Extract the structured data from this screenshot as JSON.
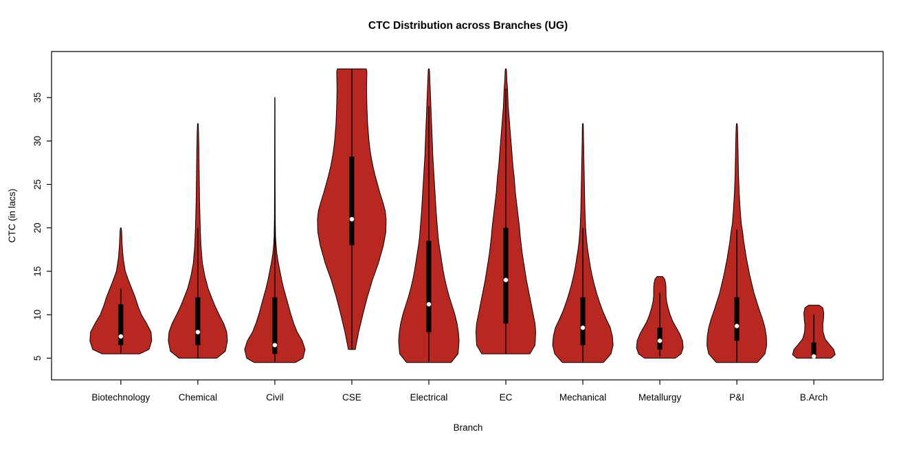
{
  "title": "CTC Distribution across Branches (UG)",
  "chart_data": {
    "type": "violin",
    "title": "CTC Distribution across Branches (UG)",
    "xlabel": "Branch",
    "ylabel": "CTC (in lacs)",
    "categories": [
      "Biotechnology",
      "Chemical",
      "Civil",
      "CSE",
      "Electrical",
      "EC",
      "Mechanical",
      "Metallurgy",
      "P&I",
      "B.Arch"
    ],
    "y_ticks": [
      5,
      10,
      15,
      20,
      25,
      30,
      35
    ],
    "ylim": [
      2.5,
      40.3
    ],
    "xlim": [
      0.1,
      10.9
    ],
    "grid": false,
    "legend": "none",
    "violin_fill": "#b82720",
    "violin_stroke": "#000000",
    "box_color": "#000000",
    "median_dot_color": "#ffffff",
    "series": [
      {
        "name": "Biotechnology",
        "position": 1,
        "min": 5.5,
        "max": 20,
        "q1": 6.5,
        "q3": 11.2,
        "median": 7.5,
        "whisker_low": 5.6,
        "whisker_high": 13,
        "shape": [
          [
            5.5,
            0.55
          ],
          [
            6,
            0.82
          ],
          [
            7,
            0.9
          ],
          [
            8,
            0.88
          ],
          [
            9,
            0.75
          ],
          [
            10,
            0.6
          ],
          [
            11,
            0.5
          ],
          [
            12,
            0.42
          ],
          [
            13,
            0.32
          ],
          [
            14,
            0.22
          ],
          [
            15,
            0.13
          ],
          [
            16.5,
            0.07
          ],
          [
            18,
            0.04
          ],
          [
            19.5,
            0.025
          ],
          [
            20,
            0.01
          ]
        ]
      },
      {
        "name": "Chemical",
        "position": 2,
        "min": 5,
        "max": 32,
        "q1": 6.5,
        "q3": 12,
        "median": 8,
        "whisker_low": 5,
        "whisker_high": 20,
        "shape": [
          [
            5,
            0.55
          ],
          [
            5.8,
            0.8
          ],
          [
            7,
            0.86
          ],
          [
            8,
            0.84
          ],
          [
            9,
            0.75
          ],
          [
            10,
            0.62
          ],
          [
            11,
            0.5
          ],
          [
            12,
            0.4
          ],
          [
            13,
            0.3
          ],
          [
            14.5,
            0.2
          ],
          [
            16,
            0.13
          ],
          [
            18,
            0.09
          ],
          [
            20,
            0.07
          ],
          [
            23,
            0.05
          ],
          [
            26,
            0.04
          ],
          [
            29,
            0.03
          ],
          [
            31,
            0.02
          ],
          [
            32,
            0.01
          ]
        ]
      },
      {
        "name": "Civil",
        "position": 3,
        "min": 4.5,
        "max": 35,
        "q1": 5.5,
        "q3": 12,
        "median": 6.5,
        "whisker_low": 4.5,
        "whisker_high": 21,
        "shape": [
          [
            4.5,
            0.6
          ],
          [
            5,
            0.82
          ],
          [
            6,
            0.88
          ],
          [
            7,
            0.8
          ],
          [
            8,
            0.65
          ],
          [
            9,
            0.55
          ],
          [
            10,
            0.47
          ],
          [
            11,
            0.4
          ],
          [
            12,
            0.33
          ],
          [
            13,
            0.26
          ],
          [
            14,
            0.2
          ],
          [
            15,
            0.15
          ],
          [
            16,
            0.1
          ],
          [
            17,
            0.06
          ],
          [
            18,
            0.035
          ],
          [
            19,
            0.02
          ],
          [
            21,
            0.012
          ],
          [
            25,
            0.008
          ],
          [
            30,
            0.006
          ],
          [
            34,
            0.005
          ],
          [
            35,
            0.004
          ]
        ]
      },
      {
        "name": "CSE",
        "position": 4,
        "min": 6,
        "max": 38.3,
        "q1": 18,
        "q3": 28.2,
        "median": 21,
        "whisker_low": 6,
        "whisker_high": 38.3,
        "shape": [
          [
            6,
            0.1
          ],
          [
            7,
            0.15
          ],
          [
            8,
            0.2
          ],
          [
            9,
            0.26
          ],
          [
            10,
            0.32
          ],
          [
            12,
            0.45
          ],
          [
            14,
            0.6
          ],
          [
            16,
            0.78
          ],
          [
            18,
            0.92
          ],
          [
            19.5,
            0.99
          ],
          [
            21,
            1.0
          ],
          [
            22,
            0.97
          ],
          [
            23,
            0.9
          ],
          [
            24,
            0.82
          ],
          [
            25,
            0.75
          ],
          [
            26,
            0.68
          ],
          [
            27,
            0.62
          ],
          [
            28,
            0.57
          ],
          [
            29,
            0.53
          ],
          [
            30,
            0.5
          ],
          [
            32,
            0.46
          ],
          [
            34,
            0.44
          ],
          [
            36,
            0.43
          ],
          [
            38,
            0.44
          ],
          [
            38.3,
            0.42
          ]
        ]
      },
      {
        "name": "Electrical",
        "position": 5,
        "min": 4.5,
        "max": 38.3,
        "q1": 8,
        "q3": 18.5,
        "median": 11.2,
        "whisker_low": 4.5,
        "whisker_high": 34,
        "shape": [
          [
            4.5,
            0.65
          ],
          [
            5.5,
            0.85
          ],
          [
            7,
            0.88
          ],
          [
            8,
            0.86
          ],
          [
            9,
            0.82
          ],
          [
            10,
            0.76
          ],
          [
            11,
            0.68
          ],
          [
            12,
            0.6
          ],
          [
            13,
            0.53
          ],
          [
            14,
            0.47
          ],
          [
            15,
            0.42
          ],
          [
            16,
            0.38
          ],
          [
            17,
            0.34
          ],
          [
            18,
            0.3
          ],
          [
            19,
            0.27
          ],
          [
            20,
            0.25
          ],
          [
            22,
            0.21
          ],
          [
            24,
            0.18
          ],
          [
            26,
            0.15
          ],
          [
            28,
            0.12
          ],
          [
            30,
            0.1
          ],
          [
            32,
            0.08
          ],
          [
            34,
            0.06
          ],
          [
            36,
            0.04
          ],
          [
            38,
            0.02
          ],
          [
            38.3,
            0.01
          ]
        ]
      },
      {
        "name": "EC",
        "position": 6,
        "min": 5.5,
        "max": 38.3,
        "q1": 9,
        "q3": 20,
        "median": 14,
        "whisker_low": 5.5,
        "whisker_high": 36,
        "shape": [
          [
            5.5,
            0.7
          ],
          [
            6.5,
            0.85
          ],
          [
            8,
            0.87
          ],
          [
            9,
            0.85
          ],
          [
            10,
            0.8
          ],
          [
            11,
            0.75
          ],
          [
            12,
            0.7
          ],
          [
            13,
            0.65
          ],
          [
            14,
            0.6
          ],
          [
            15,
            0.56
          ],
          [
            16,
            0.52
          ],
          [
            17,
            0.48
          ],
          [
            18,
            0.45
          ],
          [
            19,
            0.42
          ],
          [
            20,
            0.4
          ],
          [
            21,
            0.37
          ],
          [
            22,
            0.34
          ],
          [
            23,
            0.31
          ],
          [
            24,
            0.28
          ],
          [
            25,
            0.26
          ],
          [
            26,
            0.24
          ],
          [
            27,
            0.21
          ],
          [
            28,
            0.19
          ],
          [
            29,
            0.17
          ],
          [
            30,
            0.15
          ],
          [
            31,
            0.13
          ],
          [
            32,
            0.11
          ],
          [
            33,
            0.09
          ],
          [
            34,
            0.07
          ],
          [
            35,
            0.06
          ],
          [
            36,
            0.05
          ],
          [
            37,
            0.03
          ],
          [
            38,
            0.02
          ],
          [
            38.3,
            0.01
          ]
        ]
      },
      {
        "name": "Mechanical",
        "position": 7,
        "min": 4.5,
        "max": 32,
        "q1": 6.5,
        "q3": 12,
        "median": 8.5,
        "whisker_low": 4.5,
        "whisker_high": 20,
        "shape": [
          [
            4.5,
            0.6
          ],
          [
            5.5,
            0.82
          ],
          [
            6.5,
            0.88
          ],
          [
            7.5,
            0.86
          ],
          [
            8.5,
            0.8
          ],
          [
            9.5,
            0.68
          ],
          [
            10.5,
            0.57
          ],
          [
            11.5,
            0.48
          ],
          [
            12.5,
            0.4
          ],
          [
            13.5,
            0.33
          ],
          [
            14.5,
            0.27
          ],
          [
            15.5,
            0.22
          ],
          [
            16.5,
            0.18
          ],
          [
            17.5,
            0.14
          ],
          [
            18.5,
            0.11
          ],
          [
            20,
            0.08
          ],
          [
            22,
            0.06
          ],
          [
            24,
            0.05
          ],
          [
            26,
            0.04
          ],
          [
            28,
            0.03
          ],
          [
            30,
            0.02
          ],
          [
            31.5,
            0.015
          ],
          [
            32,
            0.01
          ]
        ]
      },
      {
        "name": "Metallurgy",
        "position": 8,
        "min": 5,
        "max": 14.4,
        "q1": 6,
        "q3": 8.5,
        "median": 7,
        "whisker_low": 5.2,
        "whisker_high": 12.5,
        "shape": [
          [
            5,
            0.45
          ],
          [
            5.5,
            0.62
          ],
          [
            6.2,
            0.68
          ],
          [
            7,
            0.66
          ],
          [
            7.8,
            0.58
          ],
          [
            8.5,
            0.48
          ],
          [
            9.2,
            0.38
          ],
          [
            10,
            0.3
          ],
          [
            10.8,
            0.24
          ],
          [
            11.5,
            0.2
          ],
          [
            12.2,
            0.18
          ],
          [
            13,
            0.18
          ],
          [
            13.6,
            0.17
          ],
          [
            14.1,
            0.14
          ],
          [
            14.4,
            0.08
          ]
        ]
      },
      {
        "name": "P&I",
        "position": 9,
        "min": 4.5,
        "max": 32,
        "q1": 7,
        "q3": 12,
        "median": 8.7,
        "whisker_low": 4.5,
        "whisker_high": 19.8,
        "shape": [
          [
            4.5,
            0.6
          ],
          [
            5.5,
            0.82
          ],
          [
            6.5,
            0.87
          ],
          [
            7.5,
            0.86
          ],
          [
            8.5,
            0.82
          ],
          [
            9.5,
            0.75
          ],
          [
            10.5,
            0.66
          ],
          [
            11.5,
            0.58
          ],
          [
            12.5,
            0.5
          ],
          [
            13.5,
            0.44
          ],
          [
            14.5,
            0.38
          ],
          [
            15.5,
            0.33
          ],
          [
            16.5,
            0.28
          ],
          [
            17.5,
            0.24
          ],
          [
            18.5,
            0.2
          ],
          [
            19.5,
            0.17
          ],
          [
            20.5,
            0.13
          ],
          [
            22,
            0.1
          ],
          [
            24,
            0.07
          ],
          [
            26,
            0.05
          ],
          [
            28,
            0.04
          ],
          [
            30,
            0.03
          ],
          [
            31.5,
            0.02
          ],
          [
            32,
            0.01
          ]
        ]
      },
      {
        "name": "B.Arch",
        "position": 10,
        "min": 5,
        "max": 11.1,
        "q1": 5,
        "q3": 6.8,
        "median": 5.2,
        "whisker_low": 5,
        "whisker_high": 10,
        "shape": [
          [
            5,
            0.5
          ],
          [
            5.4,
            0.62
          ],
          [
            6,
            0.58
          ],
          [
            6.6,
            0.45
          ],
          [
            7.2,
            0.33
          ],
          [
            8,
            0.27
          ],
          [
            8.8,
            0.26
          ],
          [
            9.5,
            0.28
          ],
          [
            10.2,
            0.29
          ],
          [
            10.8,
            0.26
          ],
          [
            11.1,
            0.15
          ]
        ]
      }
    ]
  }
}
